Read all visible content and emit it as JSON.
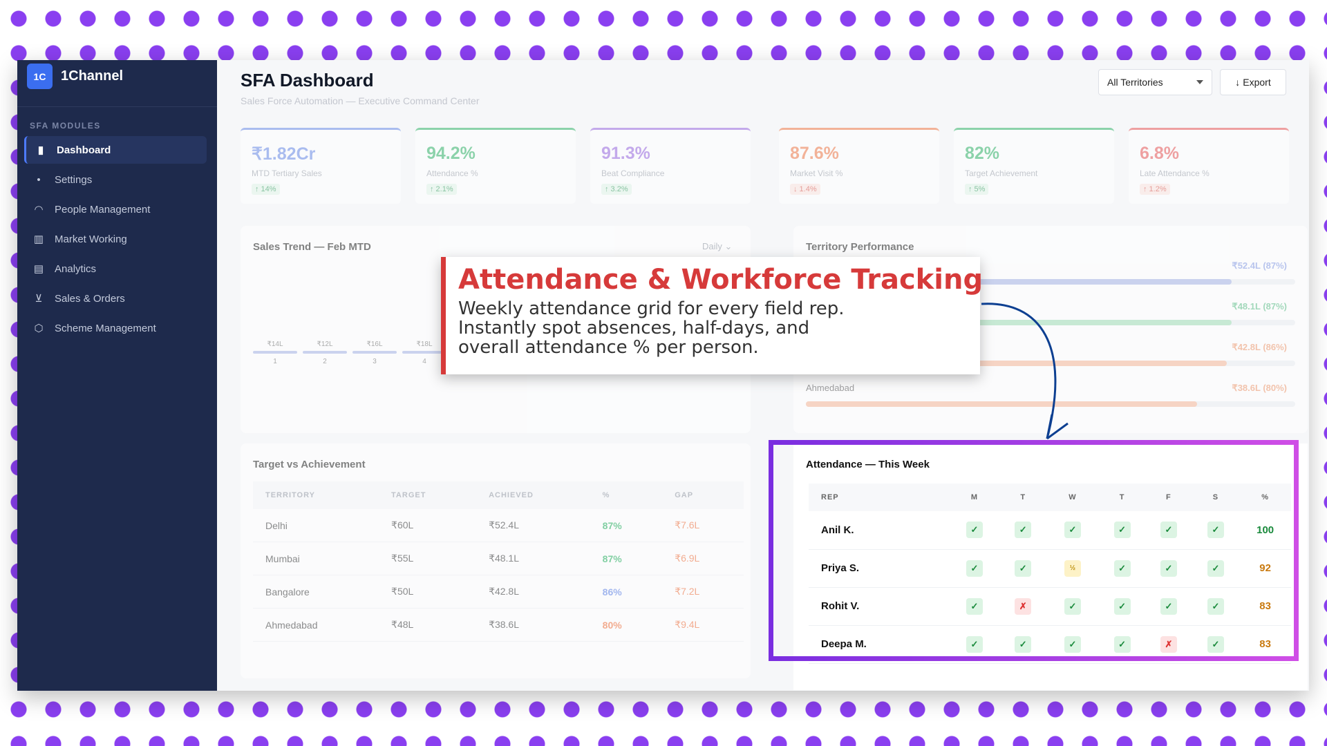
{
  "app": {
    "logo": "1C",
    "name": "1Channel"
  },
  "sidebar": {
    "section_label": "SFA MODULES",
    "items": [
      {
        "label": "Dashboard",
        "icon": "bar-chart-icon",
        "active": true
      },
      {
        "label": "Settings",
        "icon": "dot-icon"
      },
      {
        "label": "People Management",
        "icon": "people-icon"
      },
      {
        "label": "Market Working",
        "icon": "map-icon"
      },
      {
        "label": "Analytics",
        "icon": "analytics-icon"
      },
      {
        "label": "Sales & Orders",
        "icon": "cart-icon"
      },
      {
        "label": "Scheme Management",
        "icon": "tag-icon"
      }
    ]
  },
  "header": {
    "title": "SFA Dashboard",
    "subtitle": "Sales Force Automation — Executive Command Center",
    "territory_select": "All Territories",
    "export_label": "Export"
  },
  "kpis": [
    {
      "value": "₹1.82Cr",
      "label": "MTD Tertiary Sales",
      "delta": "14%",
      "direction": "up",
      "color": "#6b8ce8"
    },
    {
      "value": "94.2%",
      "label": "Attendance %",
      "delta": "2.1%",
      "direction": "up",
      "color": "#34b56a"
    },
    {
      "value": "91.3%",
      "label": "Beat Compliance",
      "delta": "3.2%",
      "direction": "up",
      "color": "#9a6be0"
    },
    {
      "value": "87.6%",
      "label": "Market Visit %",
      "delta": "1.4%",
      "direction": "down",
      "color": "#f07a4a"
    },
    {
      "value": "82%",
      "label": "Target Achievement",
      "delta": "5%",
      "direction": "up",
      "color": "#34b56a"
    },
    {
      "value": "6.8%",
      "label": "Late Attendance %",
      "delta": "1.2%",
      "direction": "up",
      "color": "#e85a5a"
    }
  ],
  "sales_trend": {
    "title": "Sales Trend — Feb MTD",
    "period": "Daily",
    "bars": [
      {
        "day": "1",
        "value": "₹14L"
      },
      {
        "day": "2",
        "value": "₹12L"
      },
      {
        "day": "3",
        "value": "₹16L"
      },
      {
        "day": "4",
        "value": "₹18L"
      }
    ]
  },
  "territory_performance": {
    "title": "Territory Performance",
    "rows": [
      {
        "name": "",
        "value": "₹52.4L (87%)",
        "fill": 0.87,
        "color": "#aebbe8",
        "vcolor": "#8fa3e6"
      },
      {
        "name": "",
        "value": "₹48.1L (87%)",
        "fill": 0.87,
        "color": "#a9e1bd",
        "vcolor": "#6cc592"
      },
      {
        "name": "",
        "value": "₹42.8L (86%)",
        "fill": 0.86,
        "color": "#f6bda2",
        "vcolor": "#f0a17a"
      },
      {
        "name": "Ahmedabad",
        "value": "₹38.6L (80%)",
        "fill": 0.8,
        "color": "#f6bda2",
        "vcolor": "#f0a17a"
      }
    ]
  },
  "target_vs_achievement": {
    "title": "Target vs Achievement",
    "headers": [
      "TERRITORY",
      "TARGET",
      "ACHIEVED",
      "%",
      "GAP"
    ],
    "rows": [
      {
        "territory": "Delhi",
        "target": "₹60L",
        "achieved": "₹52.4L",
        "pct": "87%",
        "gap": "₹7.6L",
        "pct_color": "#34b56a"
      },
      {
        "territory": "Mumbai",
        "target": "₹55L",
        "achieved": "₹48.1L",
        "pct": "87%",
        "gap": "₹6.9L",
        "pct_color": "#34b56a"
      },
      {
        "territory": "Bangalore",
        "target": "₹50L",
        "achieved": "₹42.8L",
        "pct": "86%",
        "gap": "₹7.2L",
        "pct_color": "#6b8ce8"
      },
      {
        "territory": "Ahmedabad",
        "target": "₹48L",
        "achieved": "₹38.6L",
        "pct": "80%",
        "gap": "₹9.4L",
        "pct_color": "#f07a4a"
      }
    ]
  },
  "attendance": {
    "title": "Attendance — This Week",
    "headers": [
      "REP",
      "M",
      "T",
      "W",
      "T",
      "F",
      "S",
      "%"
    ],
    "rows": [
      {
        "rep": "Anil K.",
        "days": [
          "P",
          "P",
          "P",
          "P",
          "P",
          "P"
        ],
        "pct": "100",
        "pct_color": "#1a8a3c"
      },
      {
        "rep": "Priya S.",
        "days": [
          "P",
          "P",
          "H",
          "P",
          "P",
          "P"
        ],
        "pct": "92",
        "pct_color": "#c97a10"
      },
      {
        "rep": "Rohit V.",
        "days": [
          "P",
          "A",
          "P",
          "P",
          "P",
          "P"
        ],
        "pct": "83",
        "pct_color": "#c97a10"
      },
      {
        "rep": "Deepa M.",
        "days": [
          "P",
          "P",
          "P",
          "P",
          "A",
          "P"
        ],
        "pct": "83",
        "pct_color": "#c97a10"
      }
    ],
    "symbols": {
      "P": "✓",
      "A": "✗",
      "H": "½"
    }
  },
  "callout": {
    "title": "Attendance & Workforce Tracking",
    "body": "Weekly attendance grid for every field rep.\nInstantly spot absences, half-days, and\noverall attendance % per person."
  },
  "colors": {
    "sidebar_bg": "#1e2a4c",
    "highlight": "#9b3fe6",
    "callout_accent": "#d63a3a",
    "dots": "#8a3ff0"
  }
}
